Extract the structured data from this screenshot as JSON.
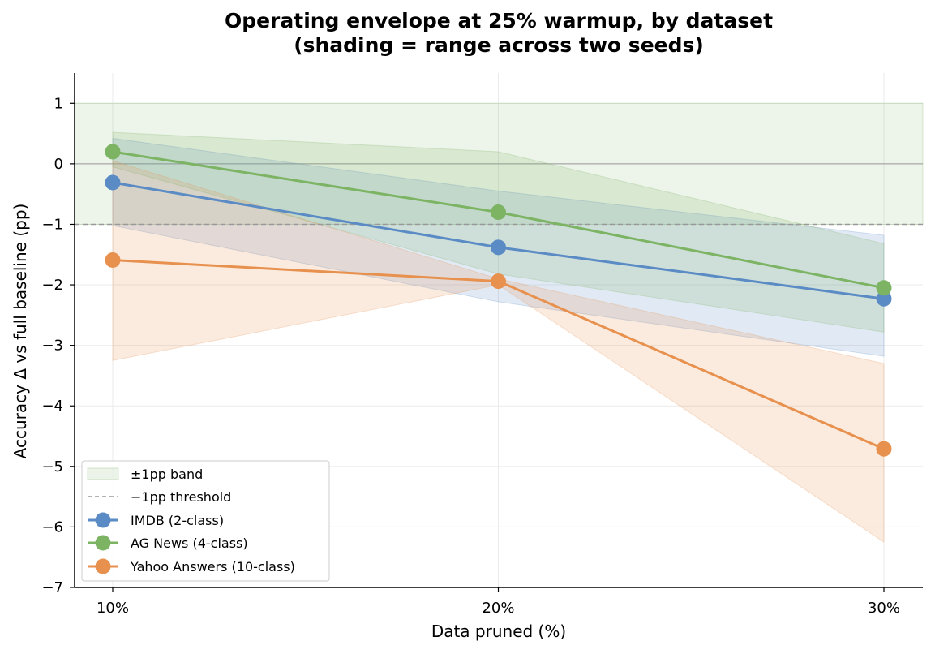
{
  "chart_data": {
    "type": "line",
    "title_lines": [
      "Operating envelope at 25% warmup, by dataset",
      "(shading = range across two seeds)"
    ],
    "xlabel": "Data pruned (%)",
    "ylabel": "Accuracy Δ vs full baseline (pp)",
    "categories": [
      "10%",
      "20%",
      "30%"
    ],
    "ylim": [
      -7,
      1.5
    ],
    "yticks": [
      1,
      0,
      -1,
      -2,
      -3,
      -4,
      -5,
      -6,
      -7
    ],
    "ytick_labels": [
      "1",
      "0",
      "−1",
      "−2",
      "−3",
      "−4",
      "−5",
      "−6",
      "−7"
    ],
    "grid": true,
    "reference_band": {
      "label": "±1pp band",
      "range": [
        -1,
        1
      ],
      "color": "#7fb069"
    },
    "reference_line": {
      "label": "−1pp threshold",
      "y": -1,
      "color": "#999999"
    },
    "zero_line": 0,
    "series": [
      {
        "name": "IMDB (2-class)",
        "color": "#5b8bc4",
        "values": [
          -0.31,
          -1.38,
          -2.23
        ],
        "lower": [
          -1.02,
          -2.28,
          -3.18
        ],
        "upper": [
          0.42,
          -0.45,
          -1.18
        ]
      },
      {
        "name": "AG News (4-class)",
        "color": "#7cb464",
        "values": [
          0.2,
          -0.8,
          -2.05
        ],
        "lower": [
          -0.05,
          -1.82,
          -2.78
        ],
        "upper": [
          0.52,
          0.2,
          -1.32
        ]
      },
      {
        "name": "Yahoo Answers (10-class)",
        "color": "#e8914f",
        "values": [
          -1.59,
          -1.94,
          -4.71
        ],
        "lower": [
          -3.25,
          -2.0,
          -6.25
        ],
        "upper": [
          0.05,
          -1.9,
          -3.3
        ]
      }
    ],
    "legend": {
      "position": "lower-left"
    }
  }
}
